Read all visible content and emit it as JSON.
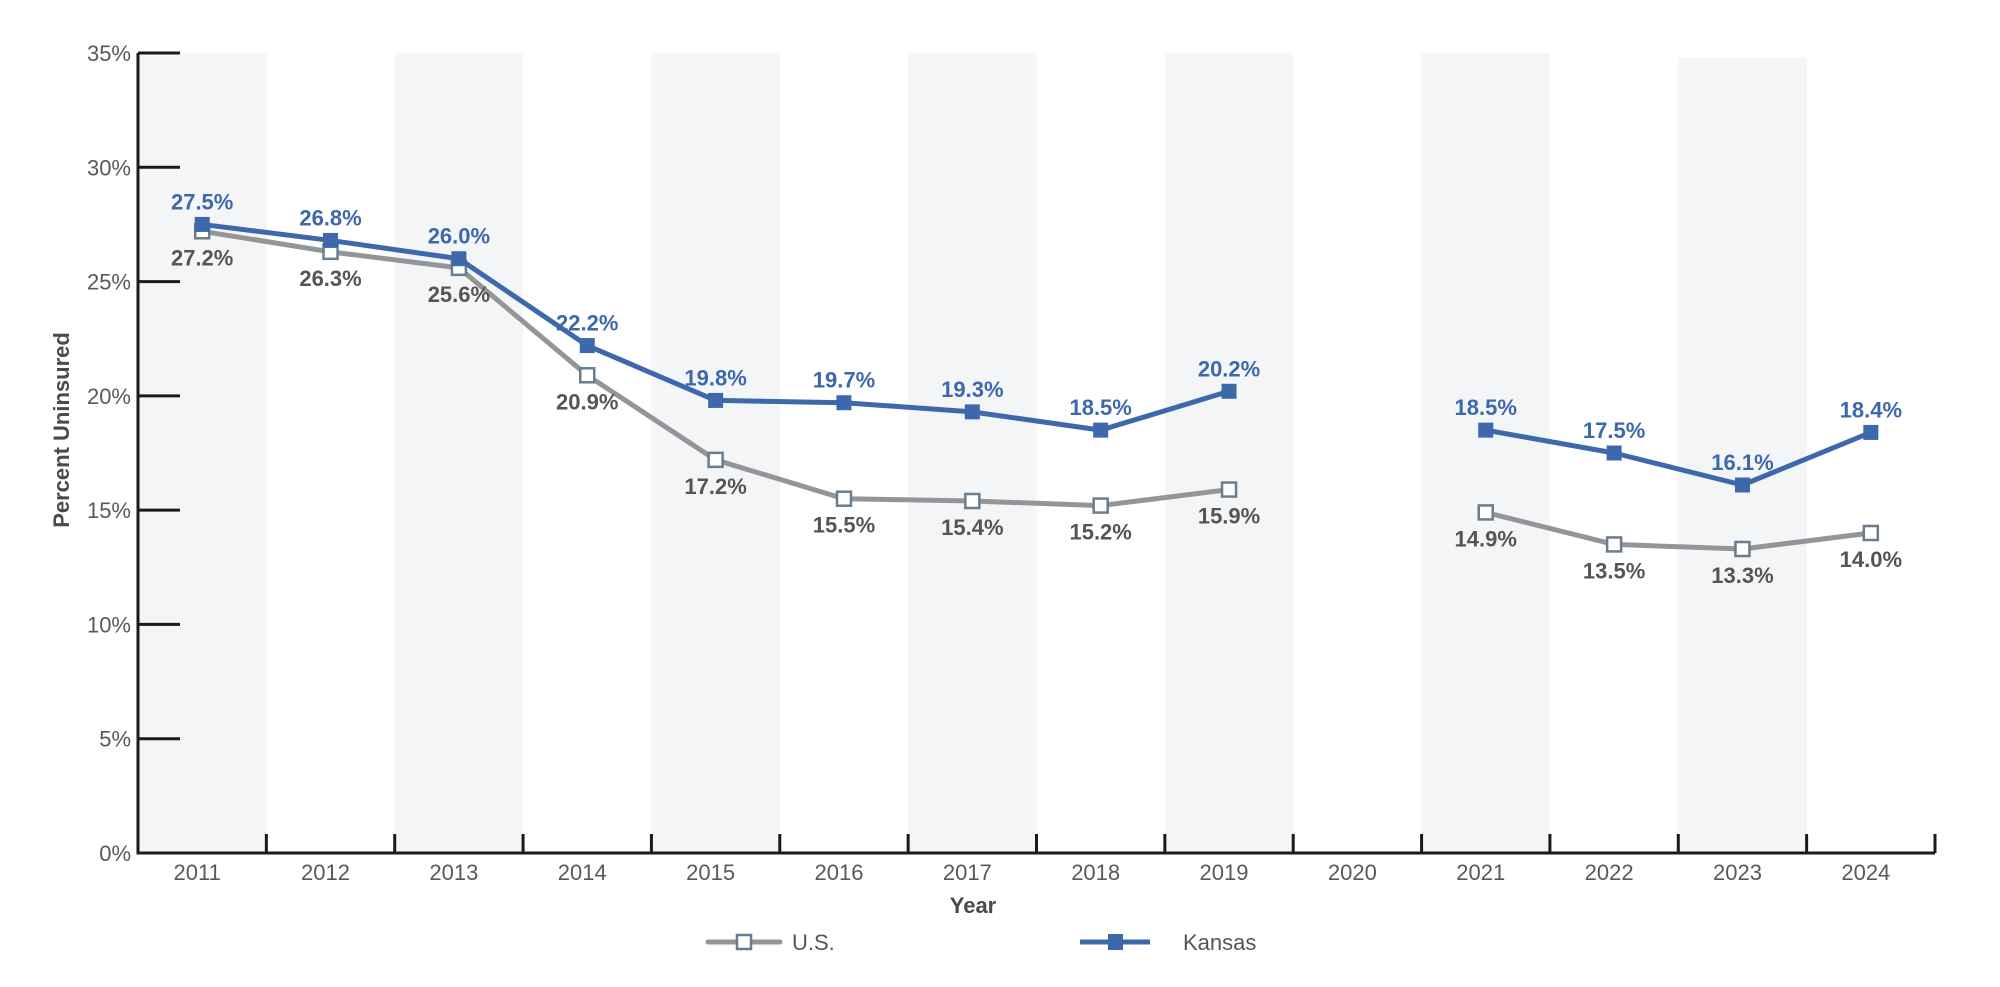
{
  "chart_data": {
    "type": "line",
    "title": "",
    "xlabel": "Year",
    "ylabel": "Percent Uninsured",
    "categories": [
      "2011",
      "2012",
      "2013",
      "2014",
      "2015",
      "2016",
      "2017",
      "2018",
      "2019",
      "2020",
      "2021",
      "2022",
      "2023",
      "2024"
    ],
    "ylim": [
      0,
      35
    ],
    "yticks": [
      0,
      5,
      10,
      15,
      20,
      25,
      30,
      35
    ],
    "ytick_labels": [
      "0%",
      "5%",
      "10%",
      "15%",
      "20%",
      "25%",
      "30%",
      "35%"
    ],
    "alternating_band_shading": true,
    "grid": false,
    "legend_position": "bottom-center",
    "series": [
      {
        "name": "U.S.",
        "color": "#939598",
        "marker": "hollow-square",
        "marker_edge_color": "#6a7d8e",
        "label_position": "below",
        "values": [
          27.2,
          26.3,
          25.6,
          20.9,
          17.2,
          15.5,
          15.4,
          15.2,
          15.9,
          null,
          14.9,
          13.5,
          13.3,
          14.0
        ],
        "labels": [
          "27.2%",
          "26.3%",
          "25.6%",
          "20.9%",
          "17.2%",
          "15.5%",
          "15.4%",
          "15.2%",
          "15.9%",
          null,
          "14.9%",
          "13.5%",
          "13.3%",
          "14.0%"
        ]
      },
      {
        "name": "Kansas",
        "color": "#3d68ac",
        "marker": "filled-square",
        "marker_edge_color": "#3d68ac",
        "label_position": "above",
        "values": [
          27.5,
          26.8,
          26.0,
          22.2,
          19.8,
          19.7,
          19.3,
          18.5,
          20.2,
          null,
          18.5,
          17.5,
          16.1,
          18.4
        ],
        "labels": [
          "27.5%",
          "26.8%",
          "26.0%",
          "22.2%",
          "19.8%",
          "19.7%",
          "19.3%",
          "18.5%",
          "20.2%",
          null,
          "18.5%",
          "17.5%",
          "16.1%",
          "18.4%"
        ]
      }
    ]
  },
  "colors": {
    "band": "#f4f5f7",
    "axis": "#1a1a1a",
    "tick_text": "#595959"
  }
}
